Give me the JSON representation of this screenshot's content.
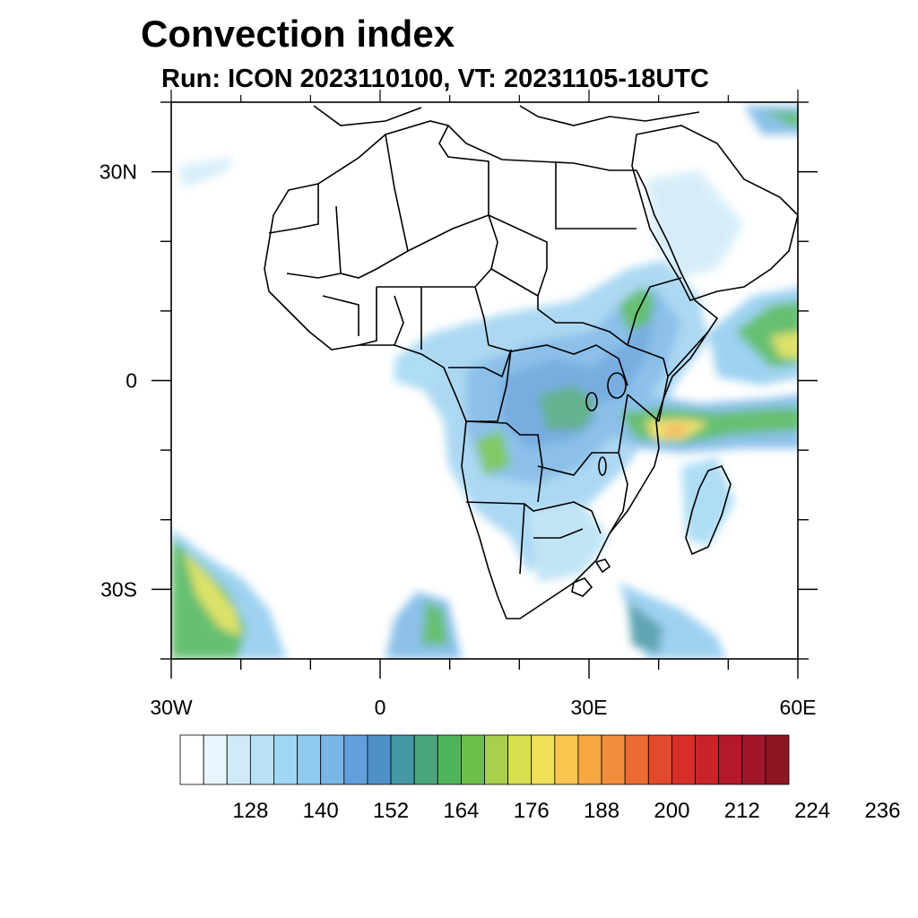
{
  "title": "Convection index",
  "subtitle": "Run: ICON 2023110100,  VT: 20231105-18UTC",
  "chart_data": {
    "type": "heatmap",
    "title": "Convection index",
    "subtitle": "Run: ICON 2023110100,  VT: 20231105-18UTC",
    "x_range": [
      -30,
      60
    ],
    "y_range": [
      -40,
      40
    ],
    "x_ticks": [
      {
        "value": -30,
        "label": "30W"
      },
      {
        "value": 0,
        "label": "0"
      },
      {
        "value": 30,
        "label": "30E"
      },
      {
        "value": 60,
        "label": "60E"
      }
    ],
    "y_ticks": [
      {
        "value": 30,
        "label": "30N"
      },
      {
        "value": 0,
        "label": "0"
      },
      {
        "value": -30,
        "label": "30S"
      }
    ],
    "colorbar": {
      "colors": [
        "#ffffff",
        "#e8f5fc",
        "#d0ebf8",
        "#b8e1f5",
        "#a0d8f3",
        "#8dcaee",
        "#78b6e6",
        "#629fdb",
        "#4f90c7",
        "#4596a6",
        "#48a57c",
        "#4eb55a",
        "#6cc049",
        "#a8d04b",
        "#d7de50",
        "#f2e05a",
        "#f8c64e",
        "#f7a744",
        "#f28d3c",
        "#ec6b32",
        "#e24a2b",
        "#d82e2a",
        "#c9232b",
        "#b5182a",
        "#a2162a",
        "#8e1522"
      ],
      "labels": [
        "128",
        "140",
        "152",
        "164",
        "176",
        "188",
        "200",
        "212",
        "224",
        "236"
      ]
    }
  }
}
